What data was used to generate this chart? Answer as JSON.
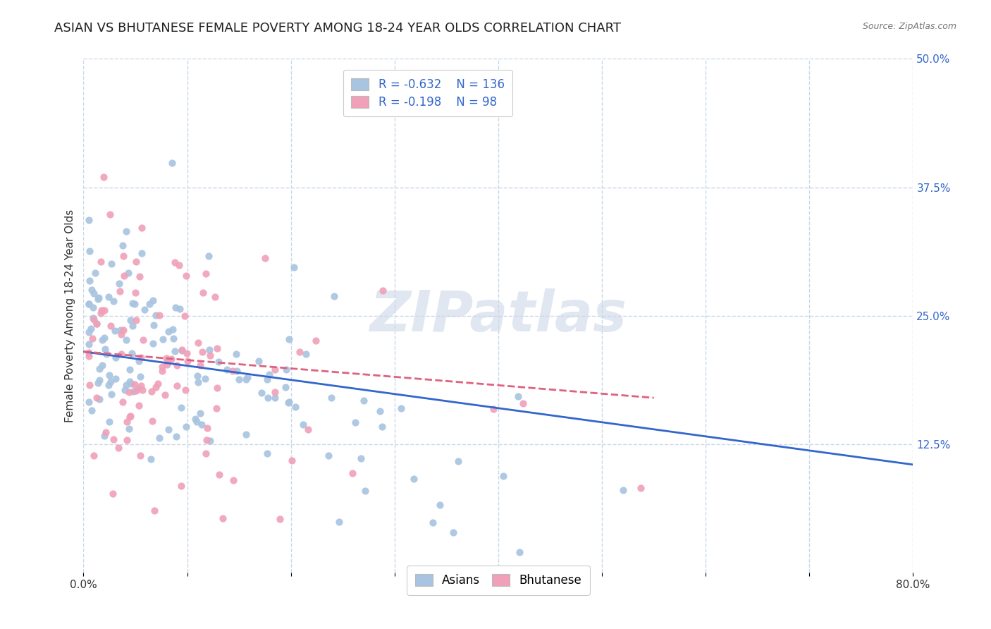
{
  "title": "ASIAN VS BHUTANESE FEMALE POVERTY AMONG 18-24 YEAR OLDS CORRELATION CHART",
  "source": "Source: ZipAtlas.com",
  "ylabel": "Female Poverty Among 18-24 Year Olds",
  "xlim": [
    0.0,
    0.8
  ],
  "ylim": [
    0.0,
    0.5
  ],
  "xticks": [
    0.0,
    0.1,
    0.2,
    0.3,
    0.4,
    0.5,
    0.6,
    0.7,
    0.8
  ],
  "xticklabels": [
    "0.0%",
    "",
    "",
    "",
    "",
    "",
    "",
    "",
    "80.0%"
  ],
  "ytick_labels_right": [
    "50.0%",
    "37.5%",
    "25.0%",
    "12.5%"
  ],
  "ytick_vals_right": [
    0.5,
    0.375,
    0.25,
    0.125
  ],
  "asian_color": "#a8c4e0",
  "bhutanese_color": "#f0a0b8",
  "asian_line_color": "#3366cc",
  "bhutanese_line_color": "#e06080",
  "R_asian": -0.632,
  "N_asian": 136,
  "R_bhutanese": -0.198,
  "N_bhutanese": 98,
  "watermark": "ZIPatlas",
  "background_color": "#ffffff",
  "grid_color": "#c8d8e8",
  "title_fontsize": 13,
  "axis_label_fontsize": 11,
  "tick_fontsize": 11,
  "legend_fontsize": 12,
  "asian_seed": 42,
  "bhutanese_seed": 123,
  "legend_R_color": "#3366cc",
  "legend_N_color": "#3366cc"
}
